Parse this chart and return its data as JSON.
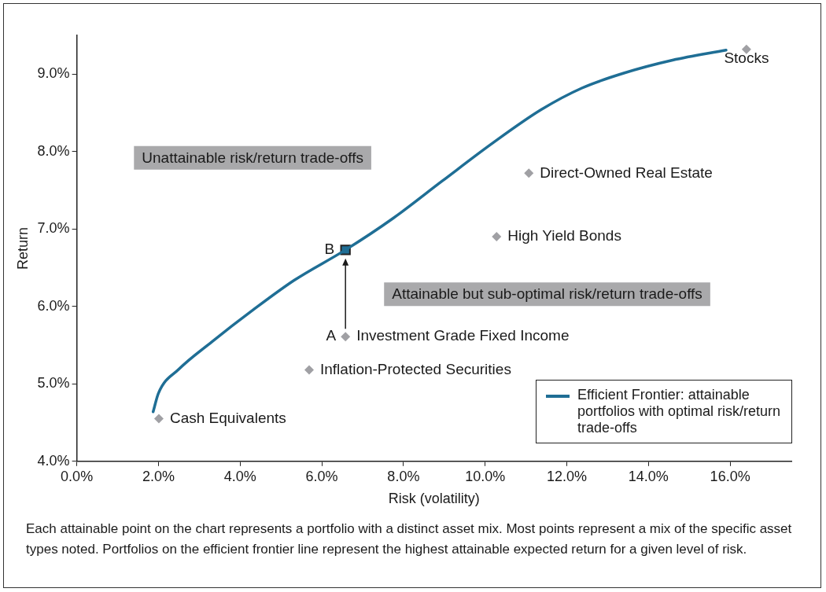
{
  "chart_data": {
    "type": "scatter",
    "xlabel": "Risk (volatility)",
    "ylabel": "Return",
    "xlim": [
      0,
      17.5
    ],
    "ylim": [
      4,
      9.5
    ],
    "xticks": [
      {
        "value": 0,
        "label": "0.0%"
      },
      {
        "value": 2,
        "label": "2.0%"
      },
      {
        "value": 4,
        "label": "4.0%"
      },
      {
        "value": 6,
        "label": "6.0%"
      },
      {
        "value": 8,
        "label": "8.0%"
      },
      {
        "value": 10,
        "label": "10.0%"
      },
      {
        "value": 12,
        "label": "12.0%"
      },
      {
        "value": 14,
        "label": "14.0%"
      },
      {
        "value": 16,
        "label": "16.0%"
      }
    ],
    "yticks": [
      {
        "value": 4,
        "label": "4.0%"
      },
      {
        "value": 5,
        "label": "5.0%"
      },
      {
        "value": 6,
        "label": "6.0%"
      },
      {
        "value": 7,
        "label": "7.0%"
      },
      {
        "value": 8,
        "label": "8.0%"
      },
      {
        "value": 9,
        "label": "9.0%"
      }
    ],
    "grid": false,
    "legend": "bottom right",
    "marker": "diamond",
    "series": [
      {
        "type": "line",
        "name": "Efficient Frontier: attainable portfolios with optimal risk/return trade-offs",
        "color": "#1f6e95",
        "marker": "none",
        "x": [
          1.87,
          2.0,
          2.5,
          3.3,
          4.33,
          5.33,
          6.58,
          7.75,
          8.95,
          10.16,
          11.37,
          12.37,
          13.38,
          14.59,
          15.9
        ],
        "values": [
          4.64,
          4.88,
          5.19,
          5.54,
          5.96,
          6.34,
          6.73,
          7.14,
          7.62,
          8.1,
          8.54,
          8.82,
          9.01,
          9.18,
          9.31
        ]
      },
      {
        "name": "Stocks",
        "color": "#a0a0a4",
        "x": [
          16.4
        ],
        "values": [
          9.32
        ]
      },
      {
        "name": "Direct-Owned Real Estate",
        "color": "#a0a0a4",
        "x": [
          11.07
        ],
        "values": [
          7.72
        ]
      },
      {
        "name": "High Yield Bonds",
        "color": "#a0a0a4",
        "x": [
          10.28
        ],
        "values": [
          6.9
        ]
      },
      {
        "name": "Investment Grade Fixed Income",
        "color": "#a0a0a4",
        "x": [
          6.58
        ],
        "values": [
          5.61
        ]
      },
      {
        "name": "Inflation-Protected Securities",
        "color": "#a0a0a4",
        "x": [
          5.69
        ],
        "values": [
          5.18
        ]
      },
      {
        "name": "Cash Equivalents",
        "color": "#a0a0a4",
        "x": [
          2.01
        ],
        "values": [
          4.55
        ]
      },
      {
        "name": "B",
        "color": "#1f6e95",
        "marker": "square",
        "x": [
          6.58
        ],
        "values": [
          6.73
        ]
      }
    ],
    "annotations": [
      {
        "text": "A",
        "x": 6.58,
        "y": 5.61
      },
      "Unattainable risk/return trade-offs",
      "Attainable but sub-optimal risk/return trade-offs",
      "Each attainable point on the chart represents a portfolio with a distinct asset mix.  Most points represent a mix of the specific asset types noted.  Portfolios on the efficient frontier line represent the highest attainable expected return for a given level of risk."
    ]
  }
}
